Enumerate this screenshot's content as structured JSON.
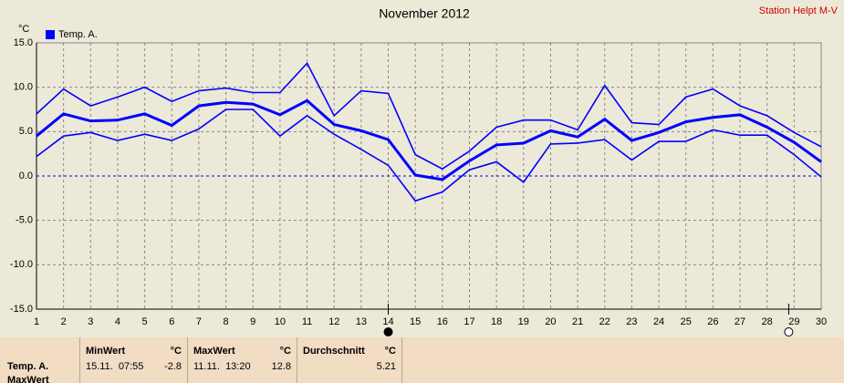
{
  "chart_data": {
    "type": "line",
    "title": "November 2012",
    "station": "Station Helpt M-V",
    "unit": "°C",
    "legend": "Temp. A.",
    "color": "#0000ff",
    "x": [
      1,
      2,
      3,
      4,
      5,
      6,
      7,
      8,
      9,
      10,
      11,
      12,
      13,
      14,
      15,
      16,
      17,
      18,
      19,
      20,
      21,
      22,
      23,
      24,
      25,
      26,
      27,
      28,
      29,
      30
    ],
    "xlim": [
      1,
      30
    ],
    "series": [
      {
        "color": "#0000ff",
        "values": [
          7.0,
          9.8,
          7.9,
          8.9,
          10.0,
          8.4,
          9.6,
          9.9,
          9.4,
          9.4,
          12.7,
          6.8,
          9.6,
          9.3,
          2.4,
          0.8,
          2.8,
          5.5,
          6.3,
          6.3,
          5.2,
          10.2,
          6.0,
          5.8,
          8.9,
          9.8,
          7.9,
          6.8,
          4.9,
          3.3
        ]
      },
      {
        "color": "#0000ff",
        "values": [
          4.5,
          7.0,
          6.2,
          6.3,
          7.0,
          5.7,
          7.9,
          8.3,
          8.1,
          6.9,
          8.5,
          5.8,
          5.1,
          4.1,
          0.1,
          -0.4,
          1.7,
          3.5,
          3.7,
          5.1,
          4.4,
          6.4,
          4.0,
          4.9,
          6.1,
          6.6,
          6.9,
          5.5,
          3.8,
          1.6
        ]
      },
      {
        "color": "#0000ff",
        "values": [
          2.2,
          4.5,
          4.9,
          4.0,
          4.7,
          4.0,
          5.3,
          7.5,
          7.5,
          4.5,
          6.8,
          4.7,
          3.0,
          1.2,
          -2.8,
          -1.8,
          0.7,
          1.6,
          -0.7,
          3.6,
          3.7,
          4.1,
          1.8,
          3.9,
          3.9,
          5.2,
          4.6,
          4.6,
          2.4,
          -0.1
        ]
      }
    ],
    "ylim": [
      -15,
      15
    ],
    "yticks": [
      {
        "value": -15,
        "label": "-15.0"
      },
      {
        "value": -10,
        "label": "-10.0"
      },
      {
        "value": -5,
        "label": "-5.0"
      },
      {
        "value": 0,
        "label": "0.0"
      },
      {
        "value": 5,
        "label": "5.0"
      },
      {
        "value": 10,
        "label": "10.0"
      },
      {
        "value": 15,
        "label": "15.0"
      }
    ],
    "grid": true,
    "markers": [
      {
        "x": 14,
        "filled": true
      },
      {
        "x": 28.8,
        "filled": false
      }
    ]
  },
  "table": {
    "row_labels": [
      "Temp. A.",
      "MaxWert"
    ],
    "columns": [
      {
        "header": "MinWert",
        "unit": "°C",
        "time": "15.11.  07:55",
        "value": "-2.8"
      },
      {
        "header": "MaxWert",
        "unit": "°C",
        "time": "11.11.  13:20",
        "value": "12.8"
      },
      {
        "header": "Durchschnitt",
        "unit": "°C",
        "time": "",
        "value": "5.21"
      }
    ]
  }
}
